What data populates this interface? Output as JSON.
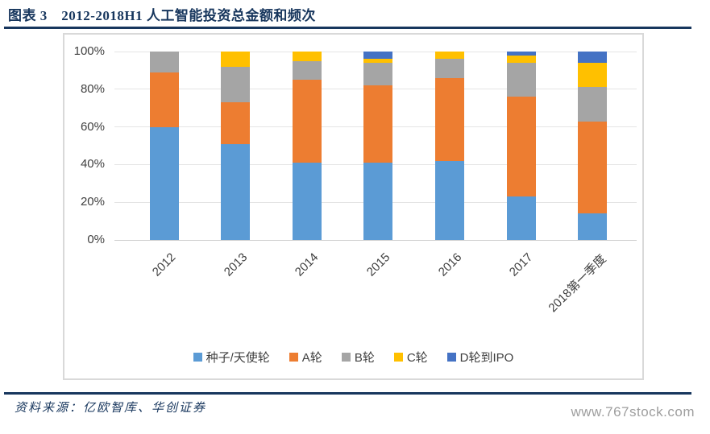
{
  "header": {
    "title": "图表 3　2012-2018H1 人工智能投资总金额和频次"
  },
  "chart_data": {
    "type": "bar",
    "variant": "stacked-100-percent",
    "title": "2012-2018H1 人工智能投资总金额和频次",
    "categories": [
      "2012",
      "2013",
      "2014",
      "2015",
      "2016",
      "2017",
      "2018第一季度"
    ],
    "series": [
      {
        "name": "种子/天使轮",
        "color": "#5B9BD5",
        "values": [
          60,
          51,
          41,
          41,
          42,
          23,
          14
        ]
      },
      {
        "name": "A轮",
        "color": "#ED7D31",
        "values": [
          29,
          22,
          44,
          41,
          44,
          53,
          49
        ]
      },
      {
        "name": "B轮",
        "color": "#A5A5A5",
        "values": [
          11,
          19,
          10,
          12,
          10,
          18,
          18
        ]
      },
      {
        "name": "C轮",
        "color": "#FFC000",
        "values": [
          0,
          8,
          5,
          2,
          4,
          4,
          13
        ]
      },
      {
        "name": "D轮到IPO",
        "color": "#4472C4",
        "values": [
          0,
          0,
          0,
          4,
          0,
          2,
          6
        ]
      }
    ],
    "y_ticks": [
      {
        "v": 0,
        "label": "0%"
      },
      {
        "v": 20,
        "label": "20%"
      },
      {
        "v": 40,
        "label": "40%"
      },
      {
        "v": 60,
        "label": "60%"
      },
      {
        "v": 80,
        "label": "80%"
      },
      {
        "v": 100,
        "label": "100%"
      }
    ],
    "ylim": [
      0,
      100
    ],
    "unit": "percent",
    "grid": true,
    "legend_position": "bottom"
  },
  "footer": {
    "source": "资料来源：亿欧智库、华创证券",
    "watermark": "www.767stock.com"
  },
  "colors": {
    "accent_navy": "#17365D",
    "frame_border": "#D9D9D9",
    "gridline": "#E4E4E4",
    "tick_text": "#404040",
    "watermark_gray": "#9E9E9E"
  }
}
